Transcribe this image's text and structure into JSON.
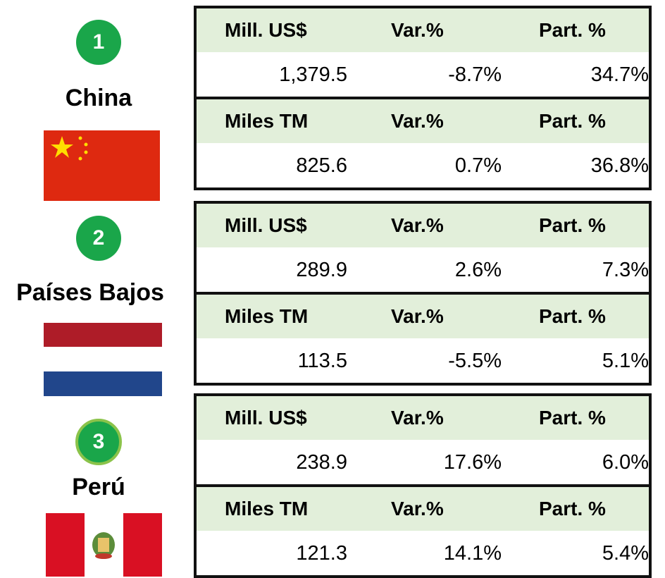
{
  "countries": [
    {
      "rank": "1",
      "name": "China",
      "tables": [
        {
          "header": [
            "Mill. US$",
            "Var.%",
            "Part. %"
          ],
          "values": [
            "1,379.5",
            "-8.7%",
            "34.7%"
          ]
        },
        {
          "header": [
            "Miles TM",
            "Var.%",
            "Part. %"
          ],
          "values": [
            "825.6",
            "0.7%",
            "36.8%"
          ]
        }
      ]
    },
    {
      "rank": "2",
      "name": "Países Bajos",
      "tables": [
        {
          "header": [
            "Mill. US$",
            "Var.%",
            "Part. %"
          ],
          "values": [
            "289.9",
            "2.6%",
            "7.3%"
          ]
        },
        {
          "header": [
            "Miles TM",
            "Var.%",
            "Part. %"
          ],
          "values": [
            "113.5",
            "-5.5%",
            "5.1%"
          ]
        }
      ]
    },
    {
      "rank": "3",
      "name": "Perú",
      "tables": [
        {
          "header": [
            "Mill. US$",
            "Var.%",
            "Part. %"
          ],
          "values": [
            "238.9",
            "17.6%",
            "6.0%"
          ]
        },
        {
          "header": [
            "Miles TM",
            "Var.%",
            "Part. %"
          ],
          "values": [
            "121.3",
            "14.1%",
            "5.4%"
          ]
        }
      ]
    }
  ]
}
